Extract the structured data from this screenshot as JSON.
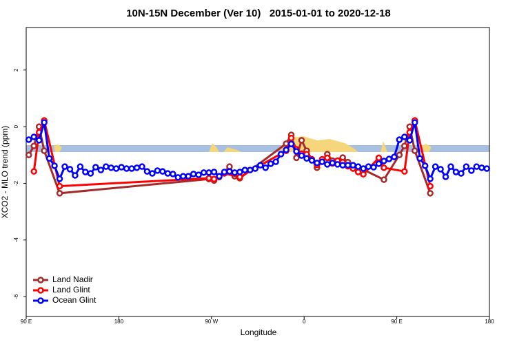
{
  "chart_data": {
    "type": "line",
    "title": "10N-15N December (Ver 10)   2015-01-01 to 2020-12-18",
    "xlabel": "Longitude",
    "ylabel": "XCO2 - MLO trend (ppm)",
    "xlim": [
      90,
      540
    ],
    "ylim": [
      -6.7,
      3.5
    ],
    "xticks": [
      {
        "value": 90,
        "label": "90 E"
      },
      180,
      {
        "value": 270,
        "label": "90 W"
      },
      {
        "value": 360,
        "label": "0"
      },
      {
        "value": 450,
        "label": "90 E"
      },
      {
        "value": 540,
        "label": "180"
      }
    ],
    "yticks": [
      -6,
      -4,
      -2,
      0,
      2
    ],
    "legend": "bottom-left",
    "series": [
      {
        "name": "Land Nadir",
        "color": "#a52a2a",
        "x": [
          92.5,
          97.5,
          102.5,
          107.5,
          122.5,
          267.5,
          272.5,
          277.5,
          287.5,
          292.5,
          297.5,
          342.5,
          347.5,
          352.5,
          357.5,
          362.5,
          372.5,
          382.5,
          387.5,
          397.5,
          402.5,
          437.5,
          452.5,
          457.5,
          462.5,
          467.5,
          482.5
        ],
        "values": [
          -1.0,
          -0.68,
          0.0,
          -0.85,
          -2.35,
          -1.85,
          -1.9,
          -1.78,
          -1.41,
          -1.75,
          -1.82,
          -0.6,
          -0.29,
          -1.1,
          -0.48,
          -0.85,
          -1.45,
          -0.97,
          -1.2,
          -1.09,
          -1.25,
          -1.87,
          -1.0,
          -0.68,
          0.0,
          -0.85,
          -2.35
        ]
      },
      {
        "name": "Land Glint",
        "color": "#ff0000",
        "x": [
          97.5,
          102.5,
          107.5,
          122.5,
          267.5,
          272.5,
          282.5,
          297.5,
          342.5,
          347.5,
          352.5,
          357.5,
          362.5,
          367.5,
          372.5,
          377.5,
          382.5,
          387.5,
          392.5,
          397.5,
          402.5,
          407.5,
          412.5,
          417.5,
          432.5,
          437.5,
          457.5,
          462.5,
          467.5,
          482.5
        ],
        "values": [
          -1.58,
          -0.2,
          0.22,
          -2.1,
          -1.82,
          -1.85,
          -1.65,
          -1.78,
          -0.85,
          -0.4,
          -0.8,
          -0.95,
          -0.97,
          -1.15,
          -1.35,
          -1.15,
          -1.1,
          -1.3,
          -1.2,
          -1.25,
          -1.4,
          -1.48,
          -1.6,
          -1.68,
          -1.1,
          -1.45,
          -1.58,
          -0.2,
          0.22,
          -2.1
        ]
      },
      {
        "name": "Ocean Glint",
        "color": "#0000ff",
        "x": [
          92.5,
          97.5,
          102.5,
          107.5,
          112.5,
          117.5,
          122.5,
          127.5,
          132.5,
          137.5,
          142.5,
          147.5,
          152.5,
          157.5,
          162.5,
          167.5,
          172.5,
          177.5,
          182.5,
          187.5,
          192.5,
          197.5,
          202.5,
          207.5,
          212.5,
          217.5,
          222.5,
          227.5,
          232.5,
          237.5,
          242.5,
          247.5,
          252.5,
          257.5,
          262.5,
          267.5,
          272.5,
          277.5,
          282.5,
          287.5,
          292.5,
          297.5,
          302.5,
          307.5,
          312.5,
          317.5,
          322.5,
          327.5,
          332.5,
          337.5,
          342.5,
          347.5,
          352.5,
          357.5,
          362.5,
          367.5,
          372.5,
          377.5,
          382.5,
          387.5,
          392.5,
          397.5,
          402.5,
          407.5,
          412.5,
          417.5,
          422.5,
          427.5,
          432.5,
          437.5,
          442.5,
          447.5,
          452.5,
          457.5,
          462.5,
          467.5,
          472.5,
          477.5,
          482.5,
          487.5,
          492.5,
          497.5,
          502.5,
          507.5,
          512.5,
          517.5,
          522.5,
          527.5,
          532.5,
          537.5
        ],
        "values": [
          -0.46,
          -0.36,
          -0.48,
          0.15,
          -1.12,
          -1.38,
          -1.84,
          -1.41,
          -1.5,
          -1.72,
          -1.41,
          -1.6,
          -1.65,
          -1.43,
          -1.53,
          -1.41,
          -1.45,
          -1.48,
          -1.43,
          -1.48,
          -1.48,
          -1.45,
          -1.41,
          -1.58,
          -1.65,
          -1.55,
          -1.58,
          -1.65,
          -1.67,
          -1.79,
          -1.75,
          -1.75,
          -1.67,
          -1.7,
          -1.62,
          -1.62,
          -1.6,
          -1.75,
          -1.6,
          -1.58,
          -1.62,
          -1.6,
          -1.53,
          -1.53,
          -1.48,
          -1.36,
          -1.45,
          -1.31,
          -1.24,
          -0.97,
          -0.82,
          -0.61,
          -0.87,
          -1.02,
          -1.12,
          -1.19,
          -1.28,
          -1.24,
          -1.33,
          -1.28,
          -1.33,
          -1.36,
          -1.36,
          -1.36,
          -1.41,
          -1.48,
          -1.41,
          -1.43,
          -1.31,
          -1.21,
          -1.14,
          -1.07,
          -0.46,
          -0.36,
          -0.48,
          0.15,
          -1.12,
          -1.38,
          -1.84,
          -1.41,
          -1.5,
          -1.77,
          -1.41,
          -1.6,
          -1.65,
          -1.41,
          -1.55,
          -1.41,
          -1.45,
          -1.48
        ]
      }
    ]
  }
}
